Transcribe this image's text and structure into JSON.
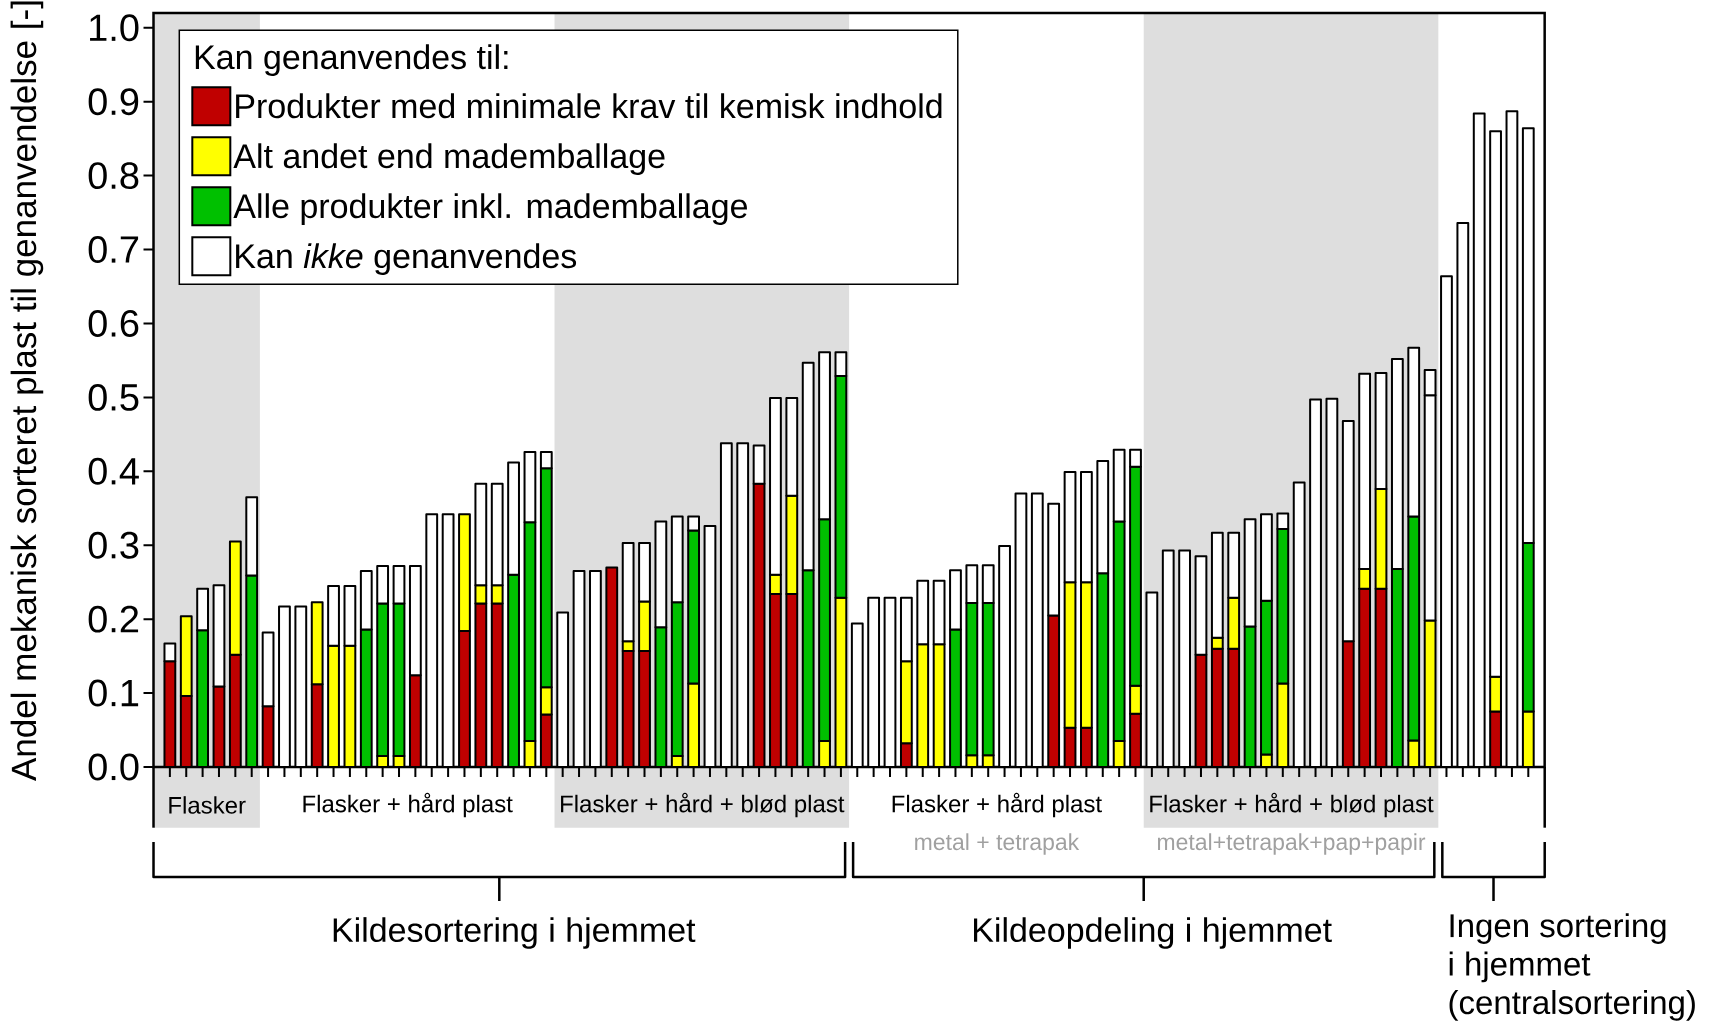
{
  "chart_data": {
    "type": "bar",
    "stacked": true,
    "ylabel": "Andel mekanisk sorteret plast til genanvendelse [-]",
    "legend_title": "Kan genanvendes til:",
    "legend": "top left",
    "tick_labels": "y",
    "categories": [
      null,
      null,
      null,
      null,
      null,
      null,
      null,
      null,
      null,
      null,
      null,
      null,
      null,
      null,
      null,
      null,
      null,
      null,
      null,
      null,
      null,
      null,
      null,
      null,
      null,
      null,
      null,
      null,
      null,
      null,
      null,
      null,
      null,
      null,
      null,
      null,
      null,
      null,
      null,
      null,
      null,
      null,
      null,
      null,
      null,
      null,
      null,
      null,
      null,
      null,
      null,
      null,
      null,
      null,
      null,
      null,
      null,
      null,
      null,
      null,
      null,
      null,
      null,
      null,
      null,
      null,
      null,
      null,
      null,
      null,
      null,
      null,
      null,
      null,
      null,
      null,
      null,
      null,
      null,
      null,
      null,
      null,
      null,
      null
    ],
    "ylim": [
      0,
      1.02
    ],
    "yticks": [
      {
        "value": 0,
        "label": "0.0"
      },
      {
        "value": 0.1,
        "label": "0.1"
      },
      {
        "value": 0.2,
        "label": "0.2"
      },
      {
        "value": 0.3,
        "label": "0.3"
      },
      {
        "value": 0.4,
        "label": "0.4"
      },
      {
        "value": 0.5,
        "label": "0.5"
      },
      {
        "value": 0.6,
        "label": "0.6"
      },
      {
        "value": 0.7,
        "label": "0.7"
      },
      {
        "value": 0.8,
        "label": "0.8"
      },
      {
        "value": 0.9,
        "label": "0.9"
      },
      {
        "value": 1,
        "label": "1.0"
      }
    ],
    "series": [
      {
        "name": "Produkter med minimale krav til kemisk indhold",
        "color": "#c00000",
        "values": [
          0.143,
          0.096,
          null,
          0.109,
          0.152,
          null,
          0.082,
          null,
          null,
          0.112,
          null,
          null,
          null,
          null,
          null,
          0.124,
          null,
          null,
          0.184,
          0.221,
          0.221,
          null,
          null,
          0.071,
          null,
          null,
          null,
          0.27,
          0.157,
          0.157,
          null,
          null,
          null,
          null,
          null,
          null,
          0.383,
          0.234,
          0.234,
          null,
          null,
          null,
          null,
          null,
          null,
          0.032,
          null,
          null,
          null,
          null,
          null,
          null,
          null,
          null,
          0.205,
          0.053,
          0.053,
          null,
          null,
          0.072,
          null,
          null,
          null,
          0.152,
          0.16,
          0.16,
          null,
          null,
          null,
          null,
          null,
          null,
          0.17,
          0.241,
          0.241,
          null,
          null,
          null,
          null,
          null,
          null,
          0.075,
          null,
          null
        ]
      },
      {
        "name": "Alt andet end mademballage",
        "color": "#ffff00",
        "values": [
          null,
          0.108,
          null,
          null,
          0.153,
          null,
          null,
          null,
          null,
          0.111,
          0.164,
          0.164,
          null,
          0.015,
          0.015,
          null,
          null,
          null,
          0.158,
          0.025,
          0.025,
          null,
          0.035,
          0.037,
          null,
          null,
          null,
          null,
          0.013,
          0.067,
          null,
          0.015,
          0.113,
          null,
          null,
          null,
          null,
          0.026,
          0.133,
          null,
          0.035,
          0.229,
          null,
          null,
          null,
          0.111,
          0.166,
          0.166,
          null,
          0.016,
          0.016,
          null,
          null,
          null,
          null,
          0.197,
          0.197,
          null,
          0.035,
          0.038,
          null,
          null,
          null,
          null,
          0.015,
          0.069,
          null,
          0.017,
          0.113,
          null,
          null,
          null,
          null,
          0.027,
          0.135,
          null,
          0.036,
          0.198,
          null,
          null,
          null,
          0.047,
          null,
          0.075
        ]
      },
      {
        "name": "Alle produkter inkl. mademballage",
        "color": "#00c000",
        "values": [
          null,
          null,
          0.185,
          null,
          null,
          0.259,
          null,
          null,
          null,
          null,
          null,
          null,
          0.186,
          0.206,
          0.206,
          null,
          null,
          null,
          null,
          null,
          null,
          0.26,
          0.296,
          0.296,
          null,
          null,
          null,
          null,
          null,
          null,
          0.189,
          0.208,
          0.207,
          null,
          null,
          null,
          null,
          null,
          null,
          0.266,
          0.3,
          0.3,
          null,
          null,
          null,
          null,
          null,
          null,
          0.186,
          0.206,
          0.206,
          null,
          null,
          null,
          null,
          null,
          null,
          0.262,
          0.297,
          0.296,
          null,
          null,
          null,
          null,
          null,
          null,
          0.19,
          0.208,
          0.209,
          null,
          null,
          null,
          null,
          null,
          null,
          0.268,
          0.303,
          null,
          null,
          null,
          null,
          null,
          null,
          0.228
        ]
      },
      {
        "name": "Kan *ikke* genanvendes",
        "color": "#ffffff",
        "values": [
          0.024,
          null,
          0.056,
          0.137,
          null,
          0.106,
          0.1,
          0.217,
          0.217,
          null,
          0.081,
          0.081,
          0.079,
          0.051,
          0.051,
          0.148,
          0.342,
          0.342,
          null,
          0.137,
          0.137,
          0.152,
          0.095,
          0.022,
          0.209,
          0.265,
          0.265,
          null,
          0.133,
          0.079,
          0.143,
          0.116,
          0.019,
          0.326,
          0.438,
          0.438,
          0.052,
          0.239,
          0.132,
          0.281,
          0.226,
          0.032,
          0.194,
          0.229,
          0.229,
          0.086,
          0.086,
          0.086,
          0.08,
          0.051,
          0.051,
          0.299,
          0.37,
          0.37,
          0.151,
          0.149,
          0.149,
          0.152,
          0.097,
          0.023,
          0.236,
          0.293,
          0.293,
          0.133,
          0.142,
          0.088,
          0.145,
          0.117,
          0.021,
          0.385,
          0.497,
          0.498,
          0.298,
          0.264,
          0.157,
          0.284,
          0.228,
          0.305,
          0.664,
          0.736,
          0.884,
          0.738,
          0.887,
          0.561
        ]
      },
      {
        "color": "#ffffff",
        "values": [
          null,
          null,
          null,
          null,
          null,
          null,
          null,
          null,
          null,
          null,
          null,
          null,
          null,
          null,
          null,
          null,
          null,
          null,
          null,
          null,
          null,
          null,
          null,
          null,
          null,
          null,
          null,
          null,
          null,
          null,
          null,
          null,
          null,
          null,
          null,
          null,
          null,
          null,
          null,
          null,
          null,
          null,
          null,
          null,
          null,
          null,
          null,
          null,
          null,
          null,
          null,
          null,
          null,
          null,
          null,
          null,
          null,
          null,
          null,
          null,
          null,
          null,
          null,
          null,
          null,
          null,
          null,
          null,
          null,
          null,
          null,
          null,
          null,
          null,
          null,
          null,
          null,
          0.034,
          null,
          null,
          null,
          null,
          null,
          null
        ]
      }
    ],
    "annotations": [
      "Flasker",
      "Flasker + hård plast",
      "Flasker + hård + blød plast",
      "Flasker + hård plast",
      "metal + tetrapak",
      "Flasker + hård + blød plast",
      "metal+tetrapak+pap+papir",
      "Kildesortering i hjemmet",
      "Kildeopdeling i hjemmet",
      "Ingen sortering",
      "i hjemmet",
      "(centralsortering)"
    ]
  }
}
